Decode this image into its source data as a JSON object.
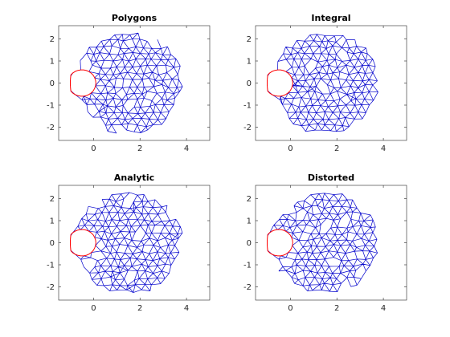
{
  "chart_data": [
    {
      "type": "mesh",
      "title": "Polygons",
      "xlim": [
        -1.5,
        5
      ],
      "ylim": [
        -2.6,
        2.6
      ],
      "xticks": [
        0,
        2,
        4
      ],
      "yticks": [
        -2,
        -1,
        0,
        1,
        2
      ],
      "grid": false,
      "outer_circle": {
        "center": [
          1.5,
          0
        ],
        "radius": 2.5
      },
      "notch_circle": {
        "center": [
          -0.5,
          0
        ],
        "radius": 0.6
      },
      "mesh_color": "#0000cc",
      "boundary_color": "#ff0000"
    },
    {
      "type": "mesh",
      "title": "Integral",
      "xlim": [
        -1.5,
        5
      ],
      "ylim": [
        -2.6,
        2.6
      ],
      "xticks": [
        0,
        2,
        4
      ],
      "yticks": [
        -2,
        -1,
        0,
        1,
        2
      ],
      "grid": false,
      "outer_circle": {
        "center": [
          1.5,
          0
        ],
        "radius": 2.5
      },
      "notch_circle": {
        "center": [
          -0.5,
          0
        ],
        "radius": 0.6
      },
      "mesh_color": "#0000cc",
      "boundary_color": "#ff0000"
    },
    {
      "type": "mesh",
      "title": "Analytic",
      "xlim": [
        -1.5,
        5
      ],
      "ylim": [
        -2.6,
        2.6
      ],
      "xticks": [
        0,
        2,
        4
      ],
      "yticks": [
        -2,
        -1,
        0,
        1,
        2
      ],
      "grid": false,
      "outer_circle": {
        "center": [
          1.5,
          0
        ],
        "radius": 2.5
      },
      "notch_circle": {
        "center": [
          -0.5,
          0
        ],
        "radius": 0.6
      },
      "mesh_color": "#0000cc",
      "boundary_color": "#ff0000"
    },
    {
      "type": "mesh",
      "title": "Distorted",
      "xlim": [
        -1.5,
        5
      ],
      "ylim": [
        -2.6,
        2.6
      ],
      "xticks": [
        0,
        2,
        4
      ],
      "yticks": [
        -2,
        -1,
        0,
        1,
        2
      ],
      "grid": false,
      "outer_circle": {
        "center": [
          1.5,
          0
        ],
        "radius": 2.5
      },
      "notch_circle": {
        "center": [
          -0.5,
          0
        ],
        "radius": 0.6
      },
      "mesh_color": "#0000cc",
      "boundary_color": "#ff0000"
    }
  ]
}
